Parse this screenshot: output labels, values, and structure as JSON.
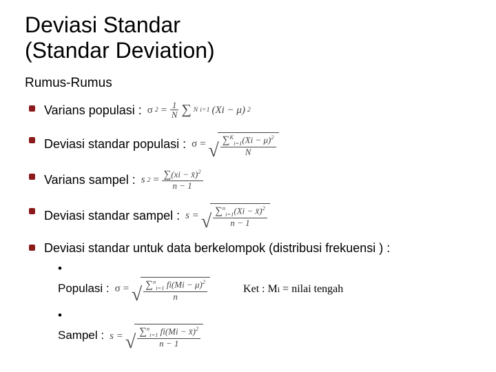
{
  "title_line1": "Deviasi Standar",
  "title_line2": "(Standar Deviation)",
  "subtitle": "Rumus-Rumus",
  "items": {
    "var_pop": {
      "label": "Varians populasi :"
    },
    "dev_pop": {
      "label": "Deviasi standar populasi :"
    },
    "var_samp": {
      "label": "Varians sampel :"
    },
    "dev_samp": {
      "label": "Deviasi standar sampel :"
    },
    "grouped": {
      "label": "Deviasi standar untuk data berkelompok (distribusi frekuensi ) :",
      "pop": "Populasi :",
      "samp": "Sampel  :",
      "ket": "Ket : ",
      "ket_sym": "Mi",
      "ket_rest": " = nilai tengah"
    }
  },
  "formulas": {
    "var_pop": "σ² = (1/N) Σᴺᵢ₌₁ (Xi − μ)²",
    "dev_pop": "σ = √( Σᴷᵢ₌₁ (Xi − μ)² / N )",
    "var_samp": "s² = Σ(xi − x̄)² / (n − 1)",
    "dev_samp": "s = √( Σⁿᵢ₌₁ (Xi − x̄)² / (n − 1) )",
    "grouped_pop": "σ = √( Σⁿᵢ₌₁ fi(Mi − μ)² / n )",
    "grouped_samp": "s = √( Σⁿᵢ₌₁ fi(Mi − x̄)² / (n − 1) )"
  },
  "colors": {
    "bullet": "#8b1a1a",
    "text": "#000000",
    "formula": "#444444",
    "background": "#ffffff"
  }
}
